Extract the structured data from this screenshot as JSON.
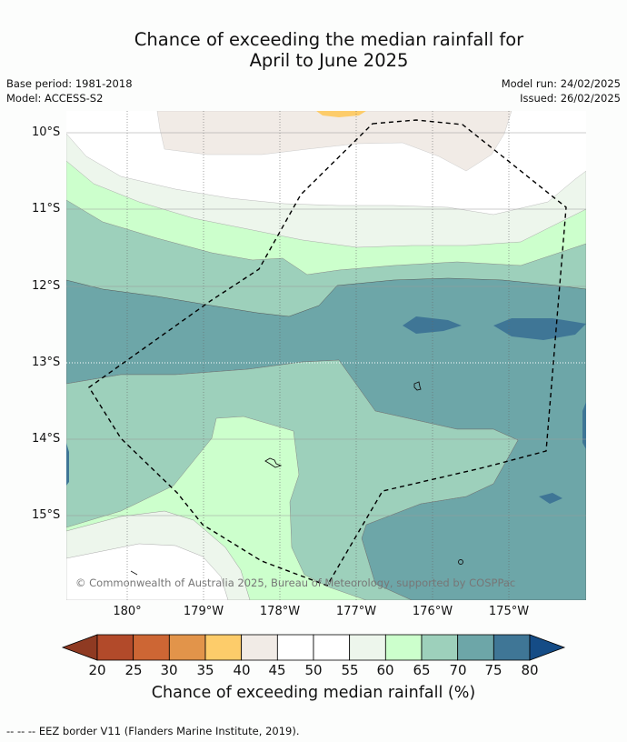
{
  "title_line1": "Chance of exceeding the median rainfall for",
  "title_line2": "April to June 2025",
  "meta": {
    "base_period": "Base period: 1981-2018",
    "model": "Model: ACCESS-S2",
    "model_run": "Model run: 24/02/2025",
    "issued": "Issued: 26/02/2025"
  },
  "credit": "© Commonwealth of Australia 2025, Bureau of Meteorology, supported by COSPPac",
  "lat_labels": [
    "10°S",
    "11°S",
    "12°S",
    "13°S",
    "14°S",
    "15°S"
  ],
  "lon_labels": [
    "180°",
    "179°W",
    "178°W",
    "177°W",
    "176°W",
    "175°W"
  ],
  "colorbar": {
    "ticks": [
      "20",
      "25",
      "30",
      "35",
      "40",
      "45",
      "50",
      "55",
      "60",
      "65",
      "70",
      "75",
      "80"
    ],
    "colors": [
      "#8f3a22",
      "#b24a2a",
      "#cd6634",
      "#e2944a",
      "#fdcc6a",
      "#f1ebe6",
      "#ffffff",
      "#ffffff",
      "#edf6ec",
      "#ccffcc",
      "#9dd0bb",
      "#6da6a8",
      "#3f7696",
      "#154c86"
    ],
    "label": "Chance of exceeding median rainfall (%)"
  },
  "legend_footer": "--  --  -- EEZ border V11 (Flanders Marine Institute, 2019)."
}
